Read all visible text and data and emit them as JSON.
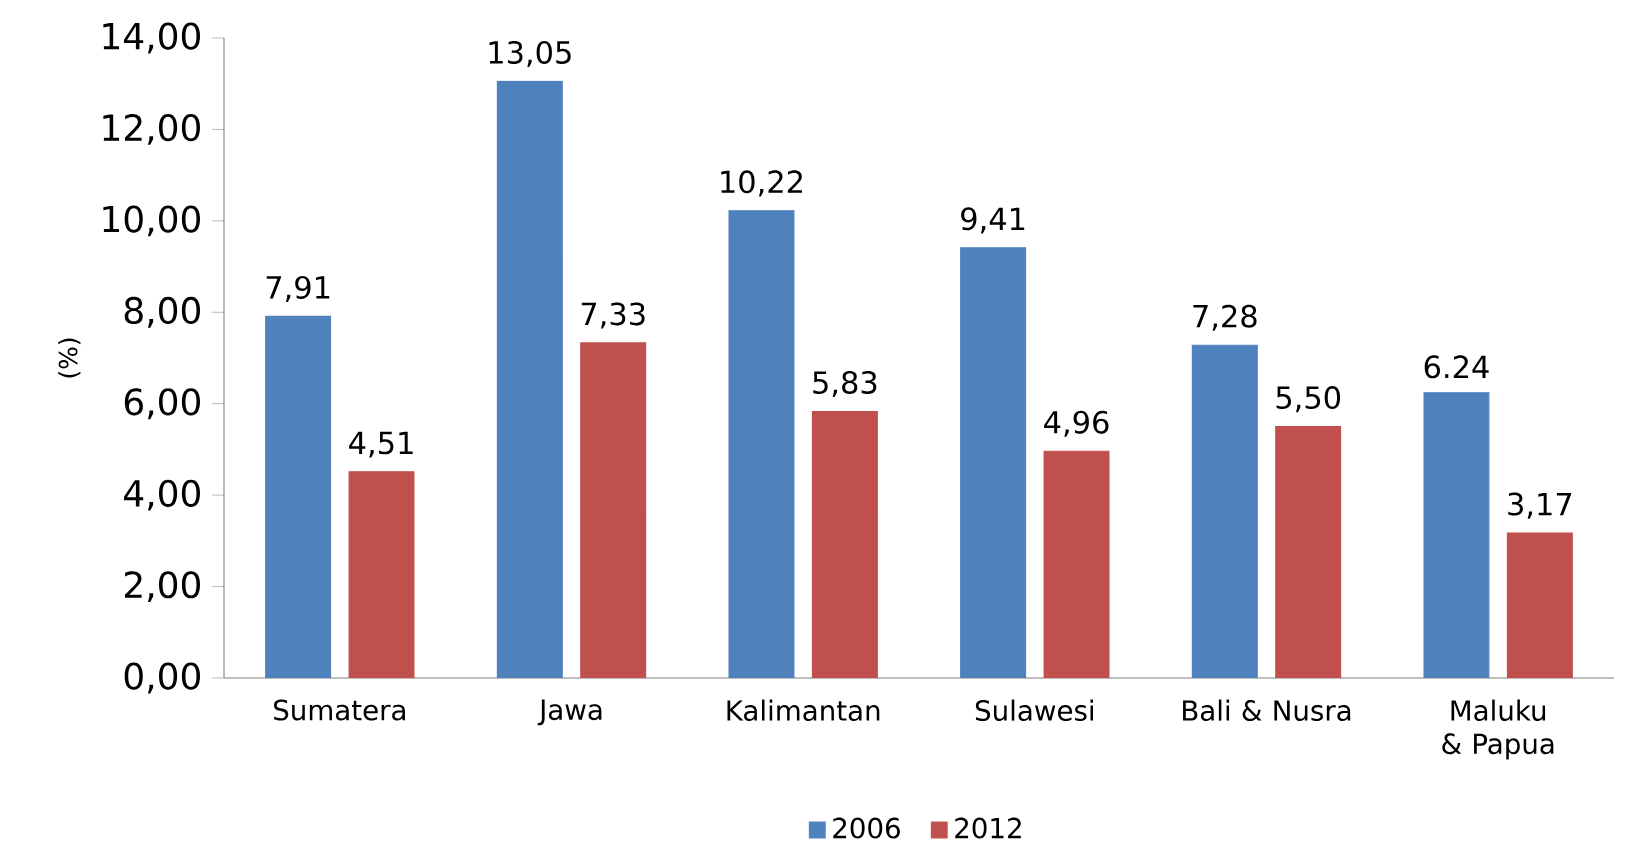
{
  "chart_data": {
    "type": "bar",
    "ylabel": "(%)",
    "categories": [
      "Sumatera",
      "Jawa",
      "Kalimantan",
      "Sulawesi",
      "Bali & Nusra",
      "Maluku & Papua"
    ],
    "series": [
      {
        "name": "2006",
        "color": "#4f81bd",
        "values": [
          7.91,
          13.05,
          10.22,
          9.41,
          7.28,
          6.24
        ],
        "value_labels": [
          "7,91",
          "13,05",
          "10,22",
          "9,41",
          "7,28",
          "6.24"
        ]
      },
      {
        "name": "2012",
        "color": "#c0504d",
        "values": [
          4.51,
          7.33,
          5.83,
          4.96,
          5.5,
          3.17
        ],
        "value_labels": [
          "4,51",
          "7,33",
          "5,83",
          "4,96",
          "5,50",
          "3,17"
        ]
      }
    ],
    "ylim": [
      0,
      14
    ],
    "yticks": [
      {
        "value": 0,
        "label": "0,00"
      },
      {
        "value": 2,
        "label": "2,00"
      },
      {
        "value": 4,
        "label": "4,00"
      },
      {
        "value": 6,
        "label": "6,00"
      },
      {
        "value": 8,
        "label": "8,00"
      },
      {
        "value": 10,
        "label": "10,00"
      },
      {
        "value": 12,
        "label": "12,00"
      },
      {
        "value": 14,
        "label": "14,00"
      }
    ],
    "grid": false,
    "legend": "bottom"
  }
}
